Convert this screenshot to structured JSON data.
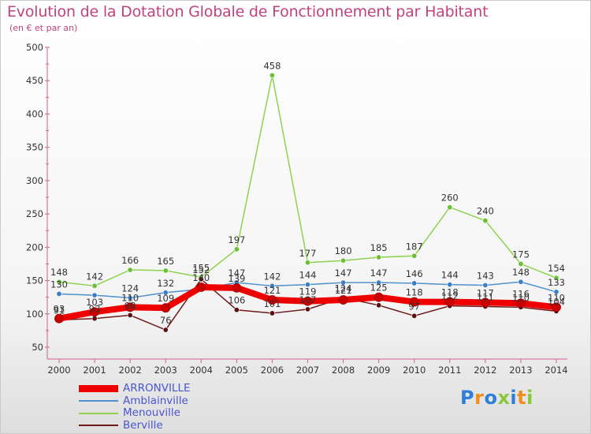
{
  "title": "Evolution de la Dotation Globale de Fonctionnement par Habitant",
  "subtitle": "(en € et par an)",
  "brand": {
    "text": "Proxiti",
    "colors": [
      "#2f7fd8",
      "#f28c1d",
      "#2f7fd8",
      "#8cc63f",
      "#2f7fd8",
      "#f28c1d",
      "#8cc63f"
    ]
  },
  "chart_data": {
    "type": "line",
    "title": "Evolution de la Dotation Globale de Fonctionnement par Habitant",
    "subtitle": "(en € et par an)",
    "xlabel": "",
    "ylabel": "",
    "x": [
      "2000",
      "2001",
      "2002",
      "2003",
      "2004",
      "2005",
      "2006",
      "2007",
      "2008",
      "2009",
      "2010",
      "2011",
      "2012",
      "2013",
      "2014"
    ],
    "ylim": [
      50,
      500
    ],
    "yticks": [
      50,
      100,
      150,
      200,
      250,
      300,
      350,
      400,
      450,
      500
    ],
    "grid": false,
    "legend_position": "bottom-left",
    "series": [
      {
        "name": "ARRONVILLE",
        "color": "#ee0000",
        "marker": "#cc0000",
        "width": 8,
        "values": [
          93,
          103,
          110,
          109,
          140,
          139,
          121,
          119,
          121,
          125,
          118,
          118,
          117,
          116,
          110
        ],
        "labels": [
          "93",
          "103",
          "110",
          "109",
          "140",
          "139",
          "121",
          "119",
          "121",
          "125",
          "118",
          "118",
          "117",
          "116",
          "110"
        ]
      },
      {
        "name": "Amblainville",
        "color": "#4f90cd",
        "marker": "#3b7ec6",
        "width": 1.5,
        "values": [
          130,
          128,
          124,
          132,
          137,
          147,
          142,
          144,
          147,
          147,
          146,
          144,
          143,
          148,
          133
        ],
        "labels": [
          "130",
          "",
          "124",
          "132",
          "",
          "147",
          "142",
          "144",
          "147",
          "147",
          "146",
          "144",
          "143",
          "148",
          "133"
        ]
      },
      {
        "name": "Menouville",
        "color": "#8ed250",
        "marker": "#6abf35",
        "width": 1.5,
        "values": [
          148,
          142,
          166,
          165,
          155,
          197,
          458,
          177,
          180,
          185,
          187,
          260,
          240,
          175,
          154
        ],
        "labels": [
          "148",
          "142",
          "166",
          "165",
          "155",
          "197",
          "458",
          "177",
          "180",
          "185",
          "187",
          "260",
          "240",
          "175",
          "154"
        ]
      },
      {
        "name": "Berville",
        "color": "#6e1a1a",
        "marker": "#5a1010",
        "width": 1.5,
        "values": [
          91,
          93,
          98,
          76,
          152,
          106,
          101,
          107,
          124,
          113,
          97,
          112,
          111,
          110,
          104
        ],
        "labels": [
          "91",
          "93",
          "98",
          "76",
          "152",
          "106",
          "101",
          "107",
          "124",
          "",
          "97",
          "112",
          "111",
          "110",
          "104"
        ]
      }
    ]
  }
}
